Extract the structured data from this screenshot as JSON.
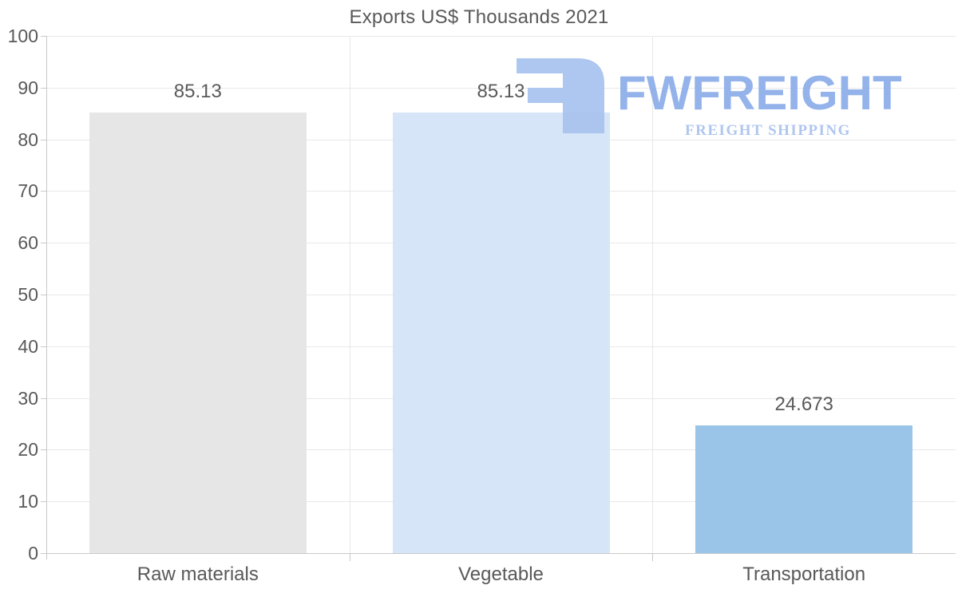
{
  "chart_data": {
    "type": "bar",
    "title": "Exports US$ Thousands 2021",
    "categories": [
      "Raw materials",
      "Vegetable",
      "Transportation"
    ],
    "values": [
      85.13,
      85.13,
      24.673
    ],
    "value_labels": [
      "85.13",
      "85.13",
      "24.673"
    ],
    "bar_colors": [
      "#e6e6e6",
      "#d6e6f8",
      "#9ac4e8"
    ],
    "xlabel": "",
    "ylabel": "",
    "ylim": [
      0,
      100
    ],
    "y_ticks": [
      0,
      10,
      20,
      30,
      40,
      50,
      60,
      70,
      80,
      90,
      100
    ],
    "grid": true,
    "legend": "none"
  },
  "watermark": {
    "brand": "FWFREIGHT",
    "tagline": "FREIGHT SHIPPING",
    "icon": "fwfreight-logo-icon",
    "brand_color": "#8fafe9",
    "tagline_color": "#abc3ee",
    "icon_color": "#a8c3ef"
  },
  "colors": {
    "background": "#ffffff",
    "text": "#595959",
    "gridline": "#e8e8e8",
    "axis": "#c9c9c9"
  }
}
